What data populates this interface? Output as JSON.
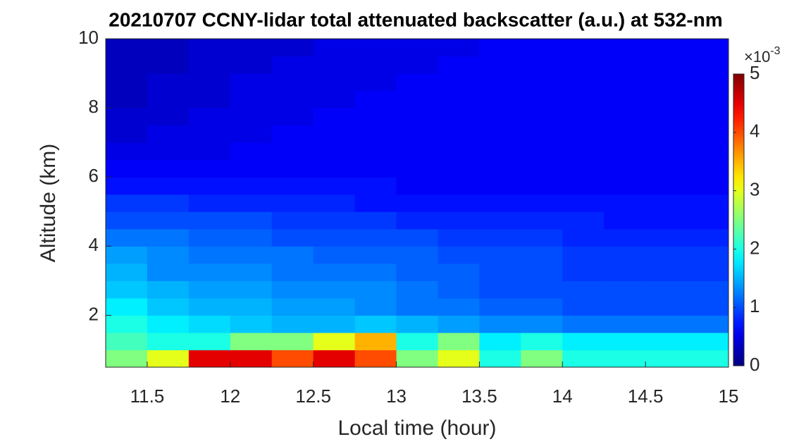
{
  "chart_data": {
    "type": "heatmap",
    "title": "20210707 CCNY-lidar total attenuated backscatter (a.u.) at 532-nm",
    "x_label": "Local time (hour)",
    "y_label": "Altitude (km)",
    "xlim": [
      11.25,
      15
    ],
    "ylim": [
      0.5,
      10
    ],
    "xticks": [
      11.5,
      12,
      12.5,
      13,
      13.5,
      14,
      14.5,
      15
    ],
    "yticks": [
      2,
      4,
      6,
      8,
      10
    ],
    "colormap": "jet",
    "clim": [
      0,
      5
    ],
    "cticks": [
      0,
      1,
      2,
      3,
      4,
      5
    ],
    "colorbar_multiplier": "×10",
    "colorbar_exponent": "-3",
    "x": [
      11.375,
      11.625,
      11.875,
      12.125,
      12.375,
      12.625,
      12.875,
      13.125,
      13.375,
      13.625,
      13.875,
      14.125,
      14.375,
      14.625,
      14.875
    ],
    "y": [
      0.75,
      1.25,
      1.75,
      2.25,
      2.75,
      3.25,
      3.75,
      4.25,
      4.75,
      5.25,
      5.75,
      6.25,
      6.75,
      7.25,
      7.75,
      8.25,
      8.75,
      9.25,
      9.75
    ],
    "values": [
      [
        2.5,
        3,
        4.5,
        4.5,
        4,
        4.5,
        4,
        2.5,
        3,
        2,
        2.5,
        2,
        2,
        2,
        2
      ],
      [
        2.2,
        2,
        2,
        2.5,
        2.5,
        3,
        3.5,
        2,
        2.5,
        1.8,
        2,
        1.8,
        1.8,
        1.8,
        1.8
      ],
      [
        2,
        1.8,
        1.7,
        1.6,
        1.5,
        1.5,
        1.6,
        1.5,
        1.4,
        1.3,
        1.3,
        1.2,
        1.2,
        1.2,
        1.2
      ],
      [
        1.8,
        1.6,
        1.5,
        1.5,
        1.4,
        1.4,
        1.3,
        1.2,
        1.2,
        1.1,
        1.1,
        1,
        1,
        1,
        1
      ],
      [
        1.6,
        1.5,
        1.4,
        1.4,
        1.3,
        1.3,
        1.3,
        1.2,
        1.1,
        1,
        1,
        1,
        1,
        1,
        1
      ],
      [
        1.5,
        1.3,
        1.3,
        1.3,
        1.2,
        1.2,
        1.2,
        1.1,
        1.1,
        1,
        1,
        0.9,
        0.9,
        0.9,
        0.9
      ],
      [
        1.4,
        1.3,
        1.2,
        1.2,
        1.2,
        1.1,
        1.1,
        1.1,
        1,
        1,
        1,
        0.9,
        0.9,
        0.9,
        0.9
      ],
      [
        1.2,
        1.2,
        1.1,
        1.1,
        1,
        1,
        1,
        1,
        0.9,
        0.9,
        0.9,
        0.8,
        0.8,
        0.8,
        0.8
      ],
      [
        1,
        1,
        1,
        1,
        0.9,
        0.9,
        0.9,
        0.8,
        0.8,
        0.8,
        0.8,
        0.8,
        0.7,
        0.7,
        0.7
      ],
      [
        0.9,
        0.9,
        0.8,
        0.8,
        0.8,
        0.8,
        0.7,
        0.7,
        0.7,
        0.7,
        0.7,
        0.7,
        0.7,
        0.7,
        0.7
      ],
      [
        0.7,
        0.7,
        0.7,
        0.7,
        0.7,
        0.7,
        0.7,
        0.6,
        0.6,
        0.6,
        0.6,
        0.6,
        0.6,
        0.6,
        0.6
      ],
      [
        0.6,
        0.6,
        0.6,
        0.6,
        0.6,
        0.6,
        0.6,
        0.6,
        0.6,
        0.6,
        0.6,
        0.6,
        0.6,
        0.6,
        0.6
      ],
      [
        0.5,
        0.5,
        0.5,
        0.6,
        0.6,
        0.6,
        0.6,
        0.6,
        0.6,
        0.6,
        0.6,
        0.6,
        0.6,
        0.6,
        0.6
      ],
      [
        0.4,
        0.5,
        0.5,
        0.5,
        0.6,
        0.6,
        0.6,
        0.6,
        0.6,
        0.6,
        0.6,
        0.6,
        0.6,
        0.6,
        0.6
      ],
      [
        0.4,
        0.4,
        0.5,
        0.5,
        0.5,
        0.6,
        0.6,
        0.6,
        0.6,
        0.6,
        0.6,
        0.6,
        0.6,
        0.6,
        0.6
      ],
      [
        0.3,
        0.4,
        0.4,
        0.5,
        0.5,
        0.5,
        0.6,
        0.6,
        0.6,
        0.6,
        0.6,
        0.6,
        0.6,
        0.6,
        0.6
      ],
      [
        0.3,
        0.4,
        0.4,
        0.5,
        0.5,
        0.5,
        0.5,
        0.6,
        0.6,
        0.6,
        0.6,
        0.6,
        0.6,
        0.6,
        0.6
      ],
      [
        0.3,
        0.3,
        0.4,
        0.4,
        0.5,
        0.5,
        0.5,
        0.5,
        0.6,
        0.6,
        0.6,
        0.6,
        0.6,
        0.6,
        0.6
      ],
      [
        0.3,
        0.3,
        0.4,
        0.4,
        0.4,
        0.5,
        0.5,
        0.5,
        0.5,
        0.6,
        0.6,
        0.6,
        0.6,
        0.6,
        0.6
      ]
    ]
  }
}
